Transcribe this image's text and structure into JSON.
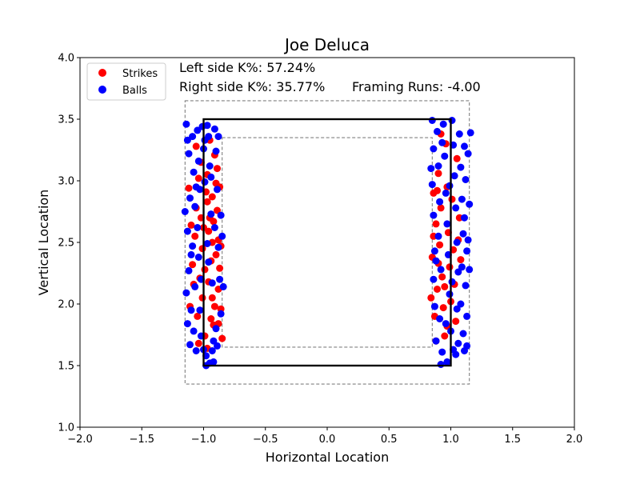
{
  "chart_data": {
    "type": "scatter",
    "title": "Joe Deluca",
    "xlabel": "Horizontal Location",
    "ylabel": "Vertical Location",
    "xlim": [
      -2.0,
      2.0
    ],
    "ylim": [
      1.0,
      4.0
    ],
    "x_ticks": [
      -2.0,
      -1.5,
      -1.0,
      -0.5,
      0.0,
      0.5,
      1.0,
      1.5,
      2.0
    ],
    "x_tick_labels": [
      "−2.0",
      "−1.5",
      "−1.0",
      "−0.5",
      "0.0",
      "0.5",
      "1.0",
      "1.5",
      "2.0"
    ],
    "y_ticks": [
      1.0,
      1.5,
      2.0,
      2.5,
      3.0,
      3.5,
      4.0
    ],
    "y_tick_labels": [
      "1.0",
      "1.5",
      "2.0",
      "2.5",
      "3.0",
      "3.5",
      "4.0"
    ],
    "grid": false,
    "legend_position": "top-left",
    "annotations": {
      "left_k": "Left side K%: 57.24%",
      "right_k": "Right side K%: 35.77%",
      "framing": "Framing Runs: -4.00"
    },
    "zones": {
      "strike_zone": {
        "x": [
          -1.0,
          1.0
        ],
        "y": [
          1.5,
          3.5
        ],
        "style": "solid",
        "color": "#000000"
      },
      "outer_zone": {
        "x": [
          -1.15,
          1.15
        ],
        "y": [
          1.35,
          3.65
        ],
        "style": "dashed",
        "color": "#808080"
      },
      "inner_zone": {
        "x": [
          -0.85,
          0.85
        ],
        "y": [
          1.65,
          3.35
        ],
        "style": "dashed",
        "color": "#808080"
      }
    },
    "series": [
      {
        "name": "Strikes",
        "color": "#ff0000",
        "points": [
          [
            -1.12,
            2.94
          ],
          [
            -1.06,
            3.28
          ],
          [
            -1.04,
            3.02
          ],
          [
            -1.02,
            2.7
          ],
          [
            -1.01,
            2.45
          ],
          [
            -1.03,
            2.21
          ],
          [
            -1.08,
            2.16
          ],
          [
            -1.11,
            1.98
          ],
          [
            -1.05,
            1.9
          ],
          [
            -0.99,
            1.74
          ],
          [
            -0.97,
            2.83
          ],
          [
            -0.96,
            2.59
          ],
          [
            -0.94,
            2.35
          ],
          [
            -0.93,
            2.05
          ],
          [
            -0.92,
            1.83
          ],
          [
            -0.91,
            3.21
          ],
          [
            -0.9,
            2.98
          ],
          [
            -0.89,
            2.76
          ],
          [
            -0.88,
            2.52
          ],
          [
            -0.87,
            2.29
          ],
          [
            -0.86,
            1.96
          ],
          [
            -0.85,
            1.72
          ],
          [
            -0.95,
            3.33
          ],
          [
            -0.98,
            2.91
          ],
          [
            -1.0,
            2.62
          ],
          [
            -0.96,
            2.18
          ],
          [
            -0.94,
            1.88
          ],
          [
            -0.92,
            2.67
          ],
          [
            -0.9,
            2.4
          ],
          [
            -0.88,
            2.12
          ],
          [
            -1.07,
            2.55
          ],
          [
            -1.09,
            2.32
          ],
          [
            -1.02,
            3.15
          ],
          [
            -0.97,
            3.05
          ],
          [
            -0.93,
            2.87
          ],
          [
            -0.89,
            3.1
          ],
          [
            -0.86,
            2.47
          ],
          [
            -1.04,
            1.68
          ],
          [
            -0.99,
            2.28
          ],
          [
            -0.91,
            1.98
          ],
          [
            -1.06,
            2.78
          ],
          [
            -0.95,
            2.7
          ],
          [
            -0.88,
            1.84
          ],
          [
            -1.01,
            2.05
          ],
          [
            -0.97,
            1.64
          ],
          [
            -0.87,
            2.95
          ],
          [
            -0.93,
            2.5
          ],
          [
            -1.1,
            2.64
          ],
          [
            0.86,
            2.9
          ],
          [
            0.88,
            2.65
          ],
          [
            0.85,
            2.38
          ],
          [
            0.89,
            2.12
          ],
          [
            0.87,
            1.9
          ],
          [
            0.9,
            3.06
          ],
          [
            0.92,
            2.78
          ],
          [
            0.91,
            2.48
          ],
          [
            0.93,
            2.22
          ],
          [
            0.94,
            1.97
          ],
          [
            0.95,
            1.74
          ],
          [
            0.96,
            3.3
          ],
          [
            0.97,
            2.95
          ],
          [
            0.98,
            2.58
          ],
          [
            0.99,
            2.3
          ],
          [
            1.0,
            2.02
          ],
          [
            1.01,
            2.85
          ],
          [
            1.02,
            2.44
          ],
          [
            1.03,
            2.16
          ],
          [
            1.05,
            3.18
          ],
          [
            1.07,
            2.7
          ],
          [
            1.08,
            2.36
          ],
          [
            1.04,
            1.86
          ],
          [
            0.86,
            2.55
          ],
          [
            0.88,
            1.7
          ],
          [
            0.9,
            2.33
          ],
          [
            0.92,
            3.38
          ],
          [
            0.95,
            2.14
          ],
          [
            0.97,
            1.82
          ],
          [
            0.89,
            2.92
          ],
          [
            1.06,
            2.52
          ],
          [
            0.84,
            2.05
          ]
        ]
      },
      {
        "name": "Balls",
        "color": "#0000ff",
        "points": [
          [
            -1.14,
            3.46
          ],
          [
            -1.12,
            3.22
          ],
          [
            -1.11,
            2.86
          ],
          [
            -1.13,
            2.59
          ],
          [
            -1.12,
            2.27
          ],
          [
            -1.14,
            2.09
          ],
          [
            -1.13,
            1.84
          ],
          [
            -1.11,
            1.67
          ],
          [
            -1.09,
            3.36
          ],
          [
            -1.08,
            3.07
          ],
          [
            -1.07,
            2.79
          ],
          [
            -1.09,
            2.47
          ],
          [
            -1.07,
            2.14
          ],
          [
            -1.08,
            1.78
          ],
          [
            -1.06,
            1.62
          ],
          [
            -1.05,
            3.41
          ],
          [
            -1.04,
            3.16
          ],
          [
            -1.03,
            2.93
          ],
          [
            -1.05,
            2.62
          ],
          [
            -1.04,
            2.38
          ],
          [
            -1.03,
            1.95
          ],
          [
            -1.02,
            1.74
          ],
          [
            -1.01,
            3.44
          ],
          [
            -1.0,
            3.26
          ],
          [
            -0.99,
            2.99
          ],
          [
            -0.98,
            1.58
          ],
          [
            -0.97,
            3.45
          ],
          [
            -0.96,
            3.36
          ],
          [
            -0.95,
            3.12
          ],
          [
            -0.94,
            2.73
          ],
          [
            -0.93,
            2.17
          ],
          [
            -0.92,
            1.7
          ],
          [
            -0.91,
            3.42
          ],
          [
            -0.9,
            3.24
          ],
          [
            -0.89,
            2.93
          ],
          [
            -0.88,
            2.46
          ],
          [
            -0.87,
            2.2
          ],
          [
            -0.86,
            1.92
          ],
          [
            -0.85,
            2.55
          ],
          [
            -0.84,
            2.14
          ],
          [
            -0.95,
            1.52
          ],
          [
            -0.98,
            1.5
          ],
          [
            -0.92,
            1.53
          ],
          [
            -0.96,
            2.34
          ],
          [
            -0.9,
            1.8
          ],
          [
            -1.1,
            2.4
          ],
          [
            -1.02,
            2.2
          ],
          [
            -0.94,
            3.03
          ],
          [
            -0.88,
            3.36
          ],
          [
            -0.86,
            2.72
          ],
          [
            -1.06,
            2.95
          ],
          [
            -1.0,
            1.63
          ],
          [
            -0.97,
            2.49
          ],
          [
            -0.93,
            1.62
          ],
          [
            -1.15,
            2.75
          ],
          [
            -1.1,
            1.95
          ],
          [
            -0.99,
            3.33
          ],
          [
            -0.89,
            1.66
          ],
          [
            -1.13,
            3.33
          ],
          [
            -0.91,
            2.62
          ],
          [
            0.85,
            3.49
          ],
          [
            0.86,
            3.26
          ],
          [
            0.85,
            2.97
          ],
          [
            0.86,
            2.72
          ],
          [
            0.87,
            2.43
          ],
          [
            0.86,
            2.2
          ],
          [
            0.87,
            1.98
          ],
          [
            0.88,
            1.7
          ],
          [
            0.89,
            3.4
          ],
          [
            0.9,
            3.12
          ],
          [
            0.91,
            2.83
          ],
          [
            0.9,
            2.55
          ],
          [
            0.92,
            2.28
          ],
          [
            0.91,
            1.88
          ],
          [
            0.93,
            1.61
          ],
          [
            0.94,
            3.46
          ],
          [
            0.95,
            3.2
          ],
          [
            0.96,
            2.9
          ],
          [
            0.97,
            2.65
          ],
          [
            0.98,
            2.4
          ],
          [
            0.99,
            2.08
          ],
          [
            1.0,
            1.78
          ],
          [
            1.01,
            3.49
          ],
          [
            1.02,
            3.29
          ],
          [
            1.03,
            3.04
          ],
          [
            1.04,
            2.78
          ],
          [
            1.05,
            2.5
          ],
          [
            1.06,
            2.26
          ],
          [
            1.05,
            1.96
          ],
          [
            1.04,
            1.59
          ],
          [
            1.07,
            3.38
          ],
          [
            1.08,
            3.11
          ],
          [
            1.09,
            2.85
          ],
          [
            1.1,
            2.57
          ],
          [
            1.09,
            2.3
          ],
          [
            1.08,
            2.0
          ],
          [
            1.1,
            1.76
          ],
          [
            1.11,
            3.28
          ],
          [
            1.12,
            3.01
          ],
          [
            1.11,
            2.7
          ],
          [
            1.13,
            2.43
          ],
          [
            1.12,
            2.15
          ],
          [
            1.13,
            1.9
          ],
          [
            1.14,
            3.22
          ],
          [
            1.15,
            2.81
          ],
          [
            1.14,
            2.52
          ],
          [
            1.15,
            2.28
          ],
          [
            1.13,
            1.66
          ],
          [
            0.92,
            1.51
          ],
          [
            0.97,
            1.53
          ],
          [
            1.02,
            1.63
          ],
          [
            1.11,
            1.62
          ],
          [
            0.88,
            2.35
          ],
          [
            0.93,
            3.31
          ],
          [
            0.99,
            2.96
          ],
          [
            1.06,
            1.68
          ],
          [
            1.16,
            3.39
          ],
          [
            0.96,
            1.84
          ],
          [
            1.01,
            2.18
          ],
          [
            0.84,
            3.1
          ]
        ]
      }
    ]
  }
}
